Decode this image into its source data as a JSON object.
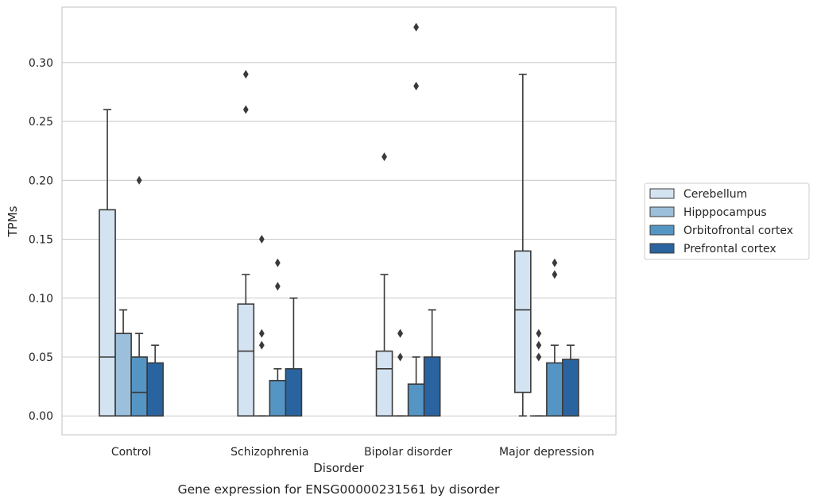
{
  "caption": "Gene expression for ENSG00000231561 by disorder",
  "chart_data": {
    "type": "box",
    "xlabel": "Disorder",
    "ylabel": "TPMs",
    "ylim": [
      -0.016,
      0.347
    ],
    "yticks": [
      "0.00",
      "0.05",
      "0.10",
      "0.15",
      "0.20",
      "0.25",
      "0.30"
    ],
    "grid": "horizontal",
    "legend_position": "right",
    "categories": [
      "Control",
      "Schizophrenia",
      "Bipolar disorder",
      "Major depression"
    ],
    "series": [
      {
        "name": "Cerebellum",
        "color": "#d4e3f1",
        "boxes": [
          {
            "q1": 0.0,
            "median": 0.05,
            "q3": 0.175,
            "whisker_low": 0.0,
            "whisker_high": 0.26,
            "outliers": []
          },
          {
            "q1": 0.0,
            "median": 0.055,
            "q3": 0.095,
            "whisker_low": 0.0,
            "whisker_high": 0.12,
            "outliers": [
              0.26,
              0.29
            ]
          },
          {
            "q1": 0.0,
            "median": 0.04,
            "q3": 0.055,
            "whisker_low": 0.0,
            "whisker_high": 0.12,
            "outliers": [
              0.22
            ]
          },
          {
            "q1": 0.02,
            "median": 0.09,
            "q3": 0.14,
            "whisker_low": 0.0,
            "whisker_high": 0.29,
            "outliers": []
          }
        ]
      },
      {
        "name": "Hipppocampus",
        "color": "#9cc0dc",
        "boxes": [
          {
            "q1": 0.0,
            "median": 0.0,
            "q3": 0.07,
            "whisker_low": 0.0,
            "whisker_high": 0.09,
            "outliers": []
          },
          {
            "q1": 0.0,
            "median": 0.0,
            "q3": 0.0,
            "whisker_low": 0.0,
            "whisker_high": 0.0,
            "outliers": [
              0.06,
              0.07,
              0.15
            ]
          },
          {
            "q1": 0.0,
            "median": 0.0,
            "q3": 0.0,
            "whisker_low": 0.0,
            "whisker_high": 0.0,
            "outliers": [
              0.05,
              0.07,
              0.07
            ]
          },
          {
            "q1": 0.0,
            "median": 0.0,
            "q3": 0.0,
            "whisker_low": 0.0,
            "whisker_high": 0.0,
            "outliers": [
              0.05,
              0.06,
              0.07
            ]
          }
        ]
      },
      {
        "name": "Orbitofrontal cortex",
        "color": "#5595c4",
        "boxes": [
          {
            "q1": 0.0,
            "median": 0.02,
            "q3": 0.05,
            "whisker_low": 0.0,
            "whisker_high": 0.07,
            "outliers": [
              0.2
            ]
          },
          {
            "q1": 0.0,
            "median": 0.0,
            "q3": 0.03,
            "whisker_low": 0.0,
            "whisker_high": 0.04,
            "outliers": [
              0.11,
              0.13
            ]
          },
          {
            "q1": 0.0,
            "median": 0.0,
            "q3": 0.027,
            "whisker_low": 0.0,
            "whisker_high": 0.05,
            "outliers": [
              0.28,
              0.33
            ]
          },
          {
            "q1": 0.0,
            "median": 0.0,
            "q3": 0.045,
            "whisker_low": 0.0,
            "whisker_high": 0.06,
            "outliers": [
              0.12,
              0.13
            ]
          }
        ]
      },
      {
        "name": "Prefrontal cortex",
        "color": "#2a64a0",
        "boxes": [
          {
            "q1": 0.0,
            "median": 0.0,
            "q3": 0.045,
            "whisker_low": 0.0,
            "whisker_high": 0.06,
            "outliers": []
          },
          {
            "q1": 0.0,
            "median": 0.0,
            "q3": 0.04,
            "whisker_low": 0.0,
            "whisker_high": 0.1,
            "outliers": []
          },
          {
            "q1": 0.0,
            "median": 0.0,
            "q3": 0.05,
            "whisker_low": 0.0,
            "whisker_high": 0.09,
            "outliers": []
          },
          {
            "q1": 0.0,
            "median": 0.0,
            "q3": 0.048,
            "whisker_low": 0.0,
            "whisker_high": 0.06,
            "outliers": []
          }
        ]
      }
    ]
  }
}
